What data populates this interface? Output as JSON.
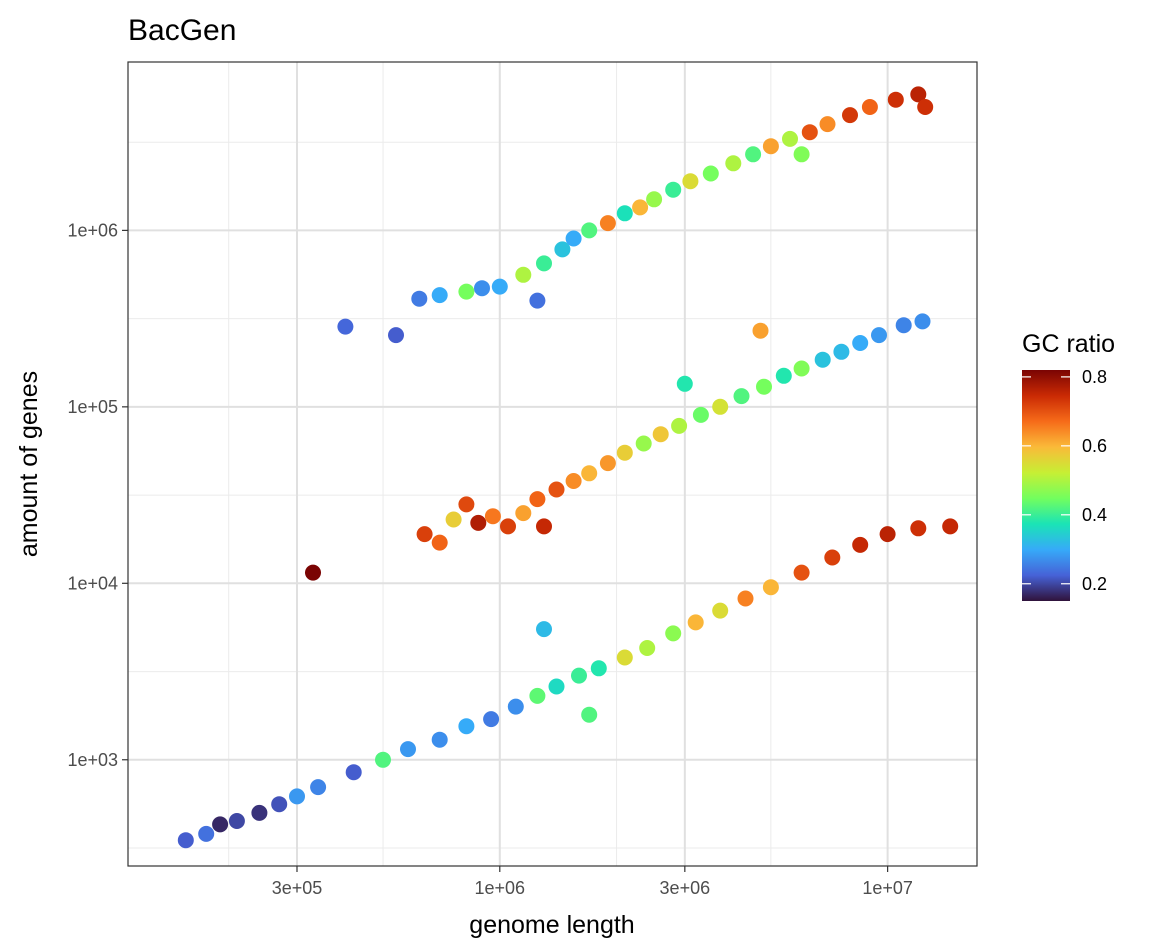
{
  "chart_data": {
    "type": "scatter",
    "title": "BacGen",
    "xlabel": "genome length",
    "ylabel": "amount of genes",
    "x_scale": "log10",
    "y_scale": "log10",
    "xlim": [
      110000,
      17000000
    ],
    "ylim": [
      250,
      9000000
    ],
    "x_ticks": [
      {
        "value": 300000,
        "label": "3e+05"
      },
      {
        "value": 1000000,
        "label": "1e+06"
      },
      {
        "value": 3000000,
        "label": "3e+06"
      },
      {
        "value": 10000000,
        "label": "1e+07"
      }
    ],
    "y_ticks": [
      {
        "value": 1000,
        "label": "1e+03"
      },
      {
        "value": 10000,
        "label": "1e+04"
      },
      {
        "value": 100000,
        "label": "1e+05"
      },
      {
        "value": 1000000,
        "label": "1e+06"
      }
    ],
    "grid": true,
    "legend": {
      "title": "GC ratio",
      "position": "right",
      "range": [
        0.15,
        0.82
      ],
      "ticks": [
        {
          "value": 0.2,
          "label": "0.2"
        },
        {
          "value": 0.4,
          "label": "0.4"
        },
        {
          "value": 0.6,
          "label": "0.6"
        },
        {
          "value": 0.8,
          "label": "0.8"
        }
      ],
      "palette": [
        "#30123b",
        "#4662d7",
        "#36aaf9",
        "#1ae4b6",
        "#72fe5e",
        "#c7ef34",
        "#faba39",
        "#f66b19",
        "#ca2a04",
        "#7a0403"
      ]
    },
    "series_note_band": [
      {
        "name": "upper band",
        "points": [
          [
            620000,
            410000,
            0.25
          ],
          [
            700000,
            430000,
            0.3
          ],
          [
            820000,
            450000,
            0.45
          ],
          [
            900000,
            470000,
            0.27
          ],
          [
            1000000,
            480000,
            0.3
          ],
          [
            1150000,
            560000,
            0.5
          ],
          [
            1300000,
            650000,
            0.4
          ],
          [
            1450000,
            780000,
            0.33
          ],
          [
            1550000,
            900000,
            0.3
          ],
          [
            1700000,
            1000000,
            0.42
          ],
          [
            1900000,
            1100000,
            0.65
          ],
          [
            2100000,
            1250000,
            0.37
          ],
          [
            2300000,
            1350000,
            0.6
          ],
          [
            2500000,
            1500000,
            0.48
          ],
          [
            2800000,
            1700000,
            0.4
          ],
          [
            3100000,
            1900000,
            0.55
          ],
          [
            3500000,
            2100000,
            0.45
          ],
          [
            4000000,
            2400000,
            0.5
          ],
          [
            4500000,
            2700000,
            0.42
          ],
          [
            5000000,
            3000000,
            0.62
          ],
          [
            5600000,
            3300000,
            0.5
          ],
          [
            6300000,
            3600000,
            0.7
          ],
          [
            7000000,
            4000000,
            0.64
          ],
          [
            8000000,
            4500000,
            0.73
          ],
          [
            9000000,
            5000000,
            0.68
          ],
          [
            10500000,
            5500000,
            0.74
          ],
          [
            12000000,
            5900000,
            0.76
          ],
          [
            12500000,
            5000000,
            0.74
          ],
          [
            400000,
            285000,
            0.23
          ],
          [
            540000,
            255000,
            0.22
          ],
          [
            1250000,
            400000,
            0.24
          ],
          [
            6000000,
            2700000,
            0.46
          ]
        ]
      },
      {
        "name": "middle band",
        "points": [
          [
            640000,
            19000,
            0.72
          ],
          [
            700000,
            17000,
            0.68
          ],
          [
            760000,
            23000,
            0.57
          ],
          [
            820000,
            28000,
            0.71
          ],
          [
            880000,
            22000,
            0.77
          ],
          [
            960000,
            24000,
            0.66
          ],
          [
            1050000,
            21000,
            0.72
          ],
          [
            1150000,
            25000,
            0.62
          ],
          [
            1250000,
            30000,
            0.68
          ],
          [
            1400000,
            34000,
            0.7
          ],
          [
            1550000,
            38000,
            0.64
          ],
          [
            1700000,
            42000,
            0.6
          ],
          [
            1900000,
            48000,
            0.63
          ],
          [
            2100000,
            55000,
            0.57
          ],
          [
            2350000,
            62000,
            0.48
          ],
          [
            2600000,
            70000,
            0.58
          ],
          [
            2900000,
            78000,
            0.5
          ],
          [
            3300000,
            90000,
            0.44
          ],
          [
            3700000,
            100000,
            0.54
          ],
          [
            4200000,
            115000,
            0.42
          ],
          [
            4800000,
            130000,
            0.45
          ],
          [
            5400000,
            150000,
            0.38
          ],
          [
            6000000,
            165000,
            0.46
          ],
          [
            6800000,
            185000,
            0.33
          ],
          [
            7600000,
            205000,
            0.32
          ],
          [
            8500000,
            230000,
            0.3
          ],
          [
            9500000,
            255000,
            0.28
          ],
          [
            11000000,
            290000,
            0.26
          ],
          [
            12300000,
            305000,
            0.27
          ],
          [
            1300000,
            21000,
            0.75
          ],
          [
            3000000,
            135000,
            0.38
          ],
          [
            4700000,
            270000,
            0.62
          ]
        ]
      },
      {
        "name": "lower band",
        "points": [
          [
            155000,
            350,
            0.22
          ],
          [
            175000,
            380,
            0.24
          ],
          [
            190000,
            430,
            0.17
          ],
          [
            210000,
            450,
            0.2
          ],
          [
            240000,
            500,
            0.18
          ],
          [
            270000,
            560,
            0.21
          ],
          [
            300000,
            620,
            0.28
          ],
          [
            340000,
            700,
            0.26
          ],
          [
            420000,
            850,
            0.22
          ],
          [
            500000,
            1000,
            0.42
          ],
          [
            580000,
            1150,
            0.28
          ],
          [
            700000,
            1300,
            0.27
          ],
          [
            820000,
            1550,
            0.3
          ],
          [
            950000,
            1700,
            0.25
          ],
          [
            1100000,
            2000,
            0.27
          ],
          [
            1250000,
            2300,
            0.43
          ],
          [
            1400000,
            2600,
            0.36
          ],
          [
            1600000,
            3000,
            0.4
          ],
          [
            1800000,
            3300,
            0.38
          ],
          [
            2100000,
            3800,
            0.55
          ],
          [
            2400000,
            4300,
            0.5
          ],
          [
            2800000,
            5200,
            0.47
          ],
          [
            3200000,
            6000,
            0.6
          ],
          [
            3700000,
            7000,
            0.55
          ],
          [
            4300000,
            8200,
            0.65
          ],
          [
            5000000,
            9500,
            0.6
          ],
          [
            6000000,
            11500,
            0.7
          ],
          [
            7200000,
            14000,
            0.72
          ],
          [
            8500000,
            16500,
            0.75
          ],
          [
            10000000,
            19000,
            0.76
          ],
          [
            12000000,
            20500,
            0.74
          ],
          [
            14500000,
            21000,
            0.75
          ],
          [
            330000,
            11500,
            0.82
          ],
          [
            1700000,
            1800,
            0.42
          ],
          [
            1300000,
            5500,
            0.32
          ]
        ]
      }
    ]
  }
}
